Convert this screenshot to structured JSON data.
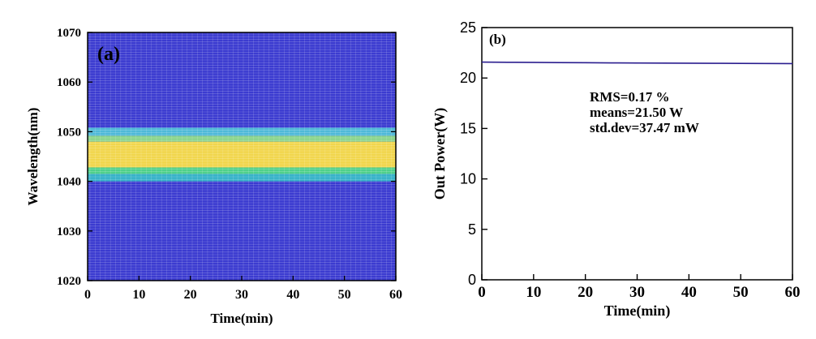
{
  "chart_data": [
    {
      "type": "heatmap",
      "panel_label": "(a)",
      "xlabel": "Time(min)",
      "ylabel": "Wavelength(nm)",
      "xlim": [
        0,
        60
      ],
      "ylim": [
        1020,
        1070
      ],
      "xticks": [
        0,
        10,
        20,
        30,
        40,
        50,
        60
      ],
      "yticks": [
        1020,
        1030,
        1040,
        1050,
        1060,
        1070
      ],
      "background_color": "#3b3bd0",
      "band_colors": [
        {
          "from": 1040.0,
          "to": 1041.5,
          "color": "#36b2c9"
        },
        {
          "from": 1041.5,
          "to": 1042.8,
          "color": "#4fd08a"
        },
        {
          "from": 1042.8,
          "to": 1048.0,
          "color": "#f1d64c"
        },
        {
          "from": 1048.0,
          "to": 1049.2,
          "color": "#8ad48c"
        },
        {
          "from": 1049.2,
          "to": 1050.8,
          "color": "#4fb9d8"
        }
      ]
    },
    {
      "type": "line",
      "panel_label": "(b)",
      "xlabel": "Time(min)",
      "ylabel": "Out Power(W)",
      "xlim": [
        0,
        60
      ],
      "ylim": [
        0,
        25
      ],
      "xticks": [
        0,
        10,
        20,
        30,
        40,
        50,
        60
      ],
      "yticks": [
        0,
        5,
        10,
        15,
        20,
        25
      ],
      "series": [
        {
          "color": "#2b1e8f",
          "x": [
            0,
            5,
            10,
            15,
            20,
            25,
            30,
            35,
            40,
            45,
            50,
            55,
            60
          ],
          "y": [
            21.58,
            21.56,
            21.55,
            21.53,
            21.52,
            21.5,
            21.49,
            21.48,
            21.47,
            21.46,
            21.45,
            21.44,
            21.43
          ]
        }
      ],
      "annotations": [
        "RMS=0.17 %",
        "means=21.50 W",
        "std.dev=37.47 mW"
      ]
    }
  ]
}
